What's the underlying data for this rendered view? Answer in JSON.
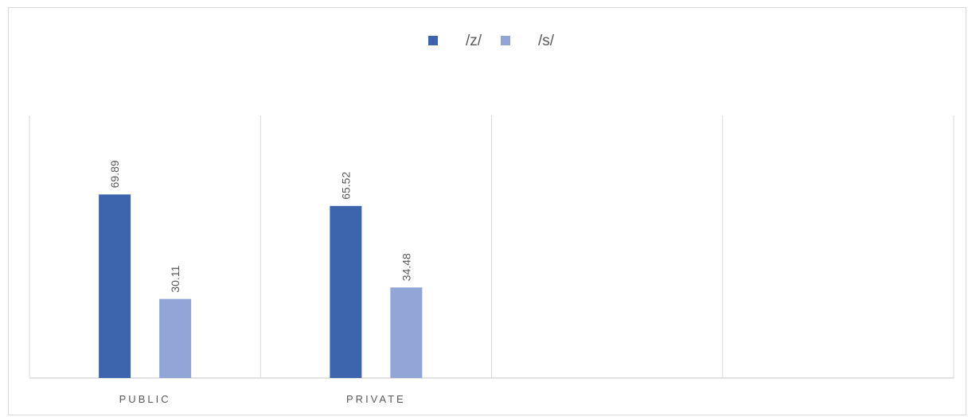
{
  "chart_data": {
    "type": "bar",
    "title": "",
    "xlabel": "",
    "ylabel": "",
    "categories": [
      "PUBLIC",
      "PRIVATE",
      "",
      ""
    ],
    "series": [
      {
        "name": "/z/",
        "values": [
          69.89,
          65.52,
          null,
          null
        ],
        "color": "#3b64ad"
      },
      {
        "name": "/s/",
        "values": [
          30.11,
          34.48,
          null,
          null
        ],
        "color": "#91a5d6"
      }
    ],
    "data_labels": [
      [
        "69.89",
        "65.52"
      ],
      [
        "30.11",
        "34.48"
      ]
    ],
    "ylim": [
      0,
      100
    ],
    "legend_position": "top-center",
    "grid": "vertical category separators",
    "y_axis_visible": false
  }
}
